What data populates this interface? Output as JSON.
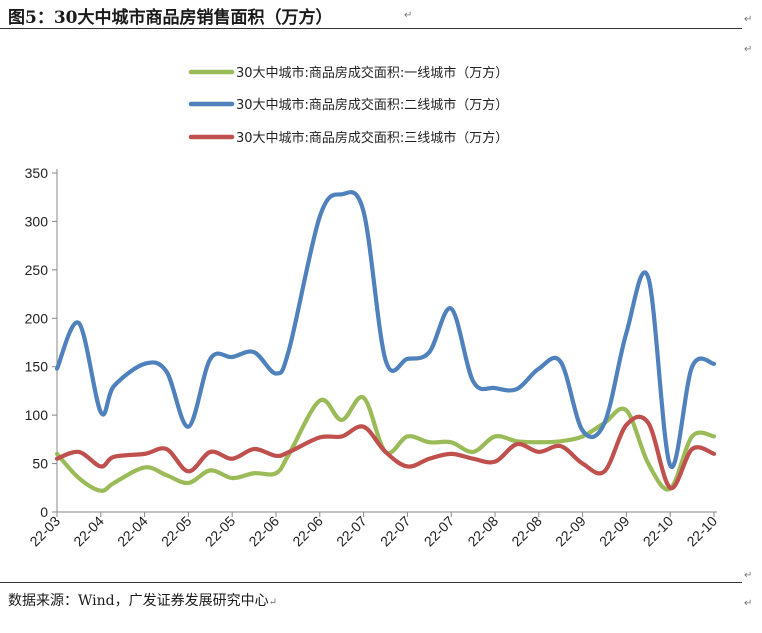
{
  "header": {
    "title": "图5：30大中城市商品房销售面积（万方）"
  },
  "footer": {
    "source": "数据来源：Wind，广发证券发展研究中心"
  },
  "marks": {
    "para": "↵"
  },
  "chart_data": {
    "type": "line",
    "title": "",
    "xlabel": "",
    "ylabel": "",
    "ylim": [
      0,
      350
    ],
    "yticks": [
      0,
      50,
      100,
      150,
      200,
      250,
      300,
      350
    ],
    "categories": [
      "22-03",
      "22-04",
      "22-04",
      "22-05",
      "22-05",
      "22-06",
      "22-06",
      "22-07",
      "22-07",
      "22-07",
      "22-08",
      "22-08",
      "22-09",
      "22-09",
      "22-10",
      "22-10"
    ],
    "grid": false,
    "legend_position": "top",
    "series": [
      {
        "name": "30大中城市:商品房成交面积:一线城市（万方）",
        "color": "#9bbb59",
        "x": [
          0,
          0.5,
          1,
          1.3,
          2,
          2.5,
          3,
          3.5,
          4,
          4.5,
          5,
          5.3,
          6,
          6.5,
          7,
          7.5,
          8,
          8.5,
          9,
          9.5,
          10,
          10.5,
          11,
          11.5,
          12,
          12.5,
          13,
          13.5,
          14,
          14.5,
          15
        ],
        "values": [
          60,
          35,
          22,
          30,
          46,
          38,
          30,
          43,
          35,
          40,
          40,
          60,
          115,
          95,
          118,
          62,
          78,
          72,
          72,
          62,
          78,
          73,
          72,
          73,
          78,
          92,
          105,
          50,
          24,
          78,
          78
        ]
      },
      {
        "name": "30大中城市:商品房成交面积:二线城市（万方）",
        "color": "#4f81bd",
        "x": [
          0,
          0.5,
          1,
          1.3,
          2,
          2.5,
          3,
          3.5,
          4,
          4.5,
          5,
          5.3,
          6,
          6.5,
          7,
          7.5,
          8,
          8.5,
          9,
          9.5,
          10,
          10.5,
          11,
          11.5,
          12,
          12.5,
          13,
          13.5,
          14,
          14.5,
          15
        ],
        "values": [
          148,
          195,
          103,
          130,
          153,
          145,
          88,
          158,
          160,
          165,
          143,
          168,
          305,
          328,
          310,
          157,
          158,
          165,
          210,
          135,
          128,
          127,
          148,
          155,
          84,
          92,
          185,
          242,
          48,
          150,
          153
        ]
      },
      {
        "name": "30大中城市:商品房成交面积:三线城市（万方）",
        "color": "#c0504d",
        "x": [
          0,
          0.5,
          1,
          1.3,
          2,
          2.5,
          3,
          3.5,
          4,
          4.5,
          5,
          5.3,
          6,
          6.5,
          7,
          7.5,
          8,
          8.5,
          9,
          9.5,
          10,
          10.5,
          11,
          11.5,
          12,
          12.5,
          13,
          13.5,
          14,
          14.5,
          15
        ],
        "values": [
          55,
          62,
          47,
          57,
          60,
          65,
          42,
          62,
          55,
          65,
          58,
          62,
          77,
          78,
          88,
          62,
          47,
          55,
          60,
          55,
          52,
          70,
          62,
          68,
          50,
          42,
          90,
          92,
          25,
          65,
          60
        ]
      }
    ]
  }
}
